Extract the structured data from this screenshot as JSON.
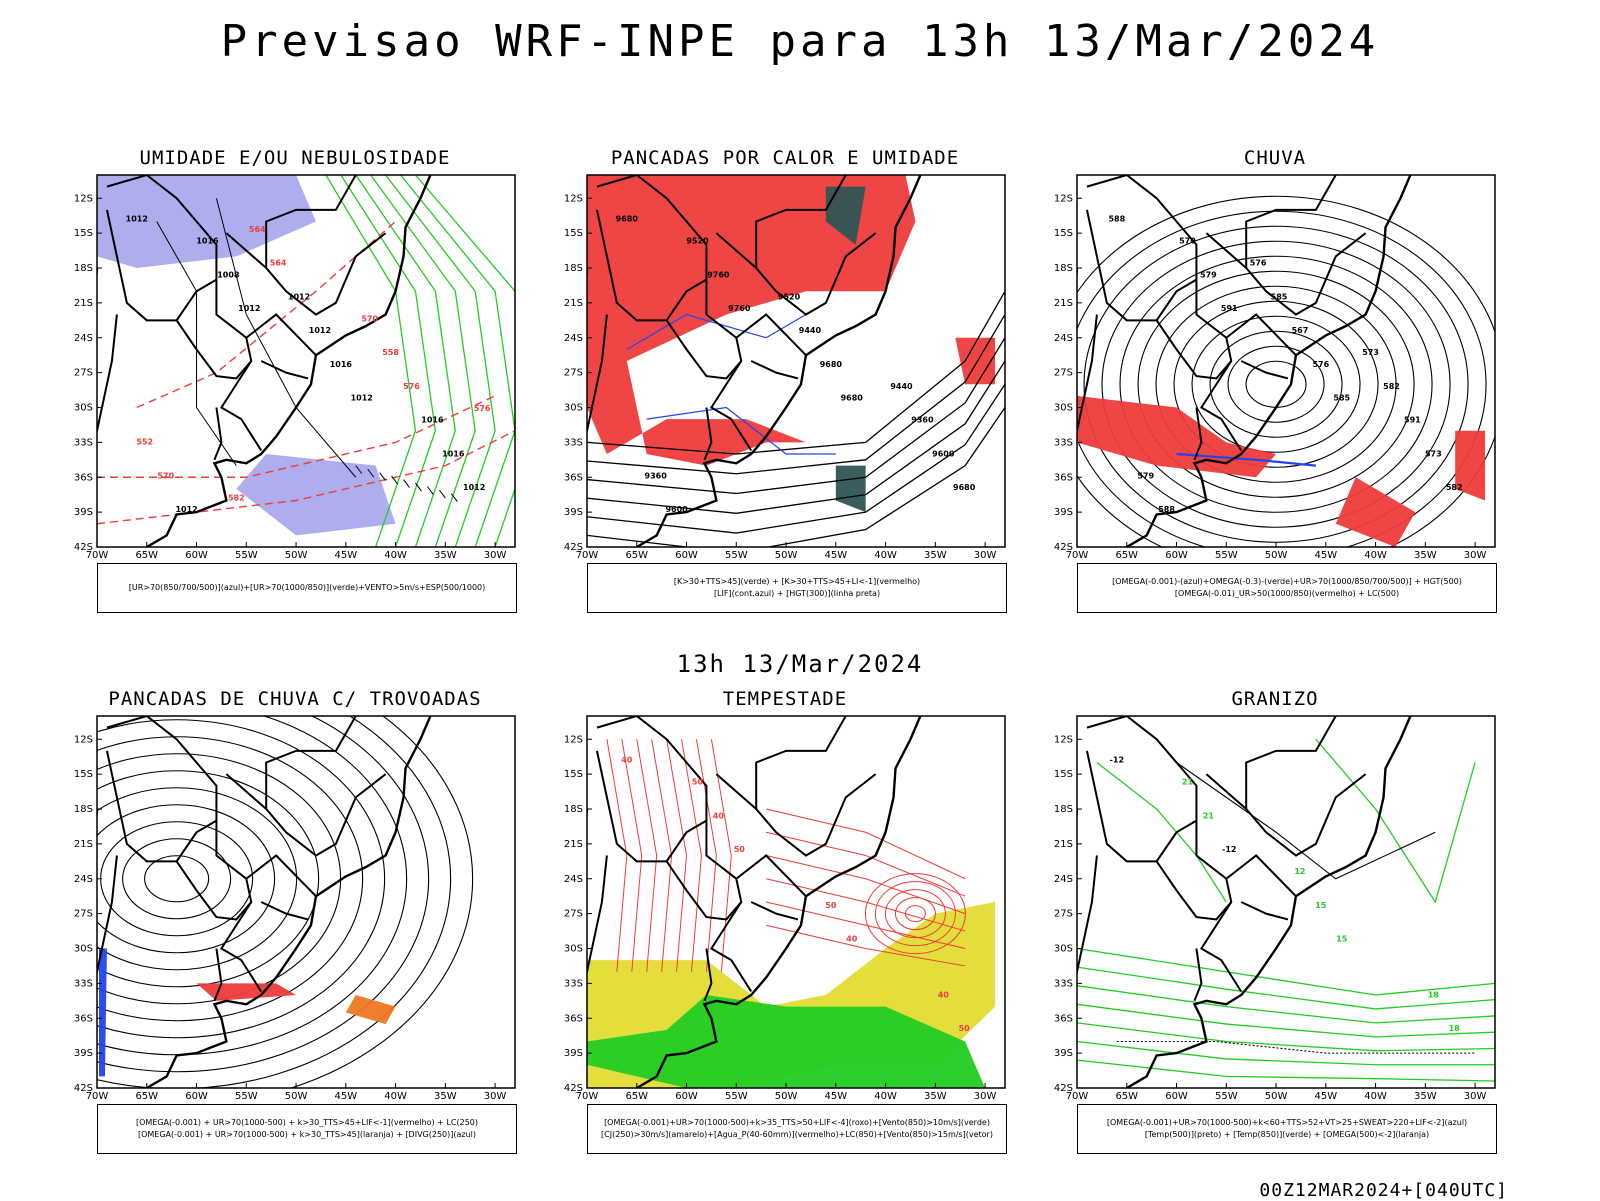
{
  "title": "Previsao WRF-INPE  para 13h 13/Mar/2024",
  "mid_stamp": "13h 13/Mar/2024",
  "footer": "00Z12MAR2024+[040UTC]",
  "colors": {
    "red": "#ee3b3b",
    "green": "#22cc22",
    "blue": "#2244ee",
    "lavender": "#aaaaee",
    "darkteal": "#2f5555",
    "yellow": "#e3dc33",
    "orange": "#ee7722",
    "black": "#000000"
  },
  "chart_data": [
    {
      "type": "map",
      "title": "UMIDADE E/OU NEBULOSIDADE",
      "legend": [
        "[UR>70(850/700/500)](azul)+[UR>70(1000/850)](verde)+VENTO>5m/s+ESP(500/1000)"
      ],
      "xlim": [
        -70,
        -28
      ],
      "ylim": [
        -42,
        -10
      ],
      "x_ticks": [
        "70W",
        "65W",
        "60W",
        "55W",
        "50W",
        "45W",
        "40W",
        "35W",
        "30W"
      ],
      "y_ticks": [
        "12S",
        "15S",
        "18S",
        "21S",
        "24S",
        "27S",
        "30S",
        "33S",
        "36S",
        "39S",
        "42S"
      ],
      "contour_labels": [
        "1012",
        "1012",
        "1012",
        "1012",
        "1008",
        "1016",
        "1016",
        "1016",
        "1012",
        "1016",
        "1012",
        "1012",
        "576",
        "570",
        "564",
        "558",
        "552",
        "564",
        "570",
        "576",
        "582"
      ]
    },
    {
      "type": "map",
      "title": "PANCADAS POR CALOR E UMIDADE",
      "legend": [
        "[K>30+TTS>45](verde) + [K>30+TTS>45+LI<-1](vermelho)",
        "[LIF](cont.azul) + [HGT(300)](linha preta)"
      ],
      "xlim": [
        -70,
        -28
      ],
      "ylim": [
        -42,
        -10
      ],
      "x_ticks": [
        "70W",
        "65W",
        "60W",
        "55W",
        "50W",
        "45W",
        "40W",
        "35W",
        "30W"
      ],
      "y_ticks": [
        "12S",
        "15S",
        "18S",
        "21S",
        "24S",
        "27S",
        "30S",
        "33S",
        "36S",
        "39S",
        "42S"
      ],
      "contour_labels": [
        "9680",
        "9760",
        "9680",
        "9680",
        "9760",
        "9680",
        "9600",
        "9520",
        "9440",
        "9360",
        "9600",
        "9520",
        "9440",
        "9360"
      ]
    },
    {
      "type": "map",
      "title": "CHUVA",
      "legend": [
        "[OMEGA(-0.001)-(azul)+OMEGA(-0.3)-(verde)+UR>70(1000/850/700/500)] + HGT(500)",
        "[OMEGA(-0.01)_UR>50(1000/850)(vermelho) + LC(500)"
      ],
      "xlim": [
        -70,
        -28
      ],
      "ylim": [
        -42,
        -10
      ],
      "x_ticks": [
        "70W",
        "65W",
        "60W",
        "55W",
        "50W",
        "45W",
        "40W",
        "35W",
        "30W"
      ],
      "y_ticks": [
        "12S",
        "15S",
        "18S",
        "21S",
        "24S",
        "27S",
        "30S",
        "33S",
        "36S",
        "39S",
        "42S"
      ],
      "contour_labels": [
        "588",
        "591",
        "585",
        "582",
        "579",
        "576",
        "573",
        "570",
        "567",
        "591",
        "588",
        "585",
        "582",
        "579",
        "576",
        "573"
      ]
    },
    {
      "type": "map",
      "title": "PANCADAS DE CHUVA C/ TROVOADAS",
      "legend": [
        "[OMEGA(-0.001) + UR>70(1000-500) + k>30_TTS>45+LIF<-1](vermelho) + LC(250)",
        "[OMEGA(-0.001) + UR>70(1000-500) + k>30_TTS>45](laranja) + [DIVG(250)](azul)"
      ],
      "xlim": [
        -70,
        -28
      ],
      "ylim": [
        -42,
        -10
      ],
      "x_ticks": [
        "70W",
        "65W",
        "60W",
        "55W",
        "50W",
        "45W",
        "40W",
        "35W",
        "30W"
      ],
      "y_ticks": [
        "12S",
        "15S",
        "18S",
        "21S",
        "24S",
        "27S",
        "30S",
        "33S",
        "36S",
        "39S",
        "42S"
      ],
      "contour_labels": []
    },
    {
      "type": "map",
      "title": "TEMPESTADE",
      "legend": [
        "[OMEGA(-0.001)+UR>70(1000-500)+k>35_TTS>50+LIF<-4](roxo)+[Vento(850)>10m/s](verde)",
        "[CJ(250)>30m/s](amarelo)+[Agua_P(40-60mm)](vermelho)+LC(850)+[Vento(850)>15m/s](vetor)"
      ],
      "xlim": [
        -70,
        -28
      ],
      "ylim": [
        -42,
        -10
      ],
      "x_ticks": [
        "70W",
        "65W",
        "60W",
        "55W",
        "50W",
        "45W",
        "40W",
        "35W",
        "30W"
      ],
      "y_ticks": [
        "12S",
        "15S",
        "18S",
        "21S",
        "24S",
        "27S",
        "30S",
        "33S",
        "36S",
        "39S",
        "42S"
      ],
      "contour_labels": [
        "40",
        "50",
        "40",
        "50",
        "40",
        "50",
        "40",
        "50"
      ]
    },
    {
      "type": "map",
      "title": "GRANIZO",
      "legend": [
        "[OMEGA(-0.001)+UR>70(1000-500)+k<60+TTS>52+VT>25+SWEAT>220+LIF<-2](azul)",
        "[Temp(500)](preto) + [Temp(850)](verde) + [OMEGA(500)<-2](laranja)"
      ],
      "xlim": [
        -70,
        -28
      ],
      "ylim": [
        -42,
        -10
      ],
      "x_ticks": [
        "70W",
        "65W",
        "60W",
        "55W",
        "50W",
        "45W",
        "40W",
        "35W",
        "30W"
      ],
      "y_ticks": [
        "12S",
        "15S",
        "18S",
        "21S",
        "24S",
        "27S",
        "30S",
        "33S",
        "36S",
        "39S",
        "42S"
      ],
      "contour_labels": [
        "-12",
        "-12",
        "15",
        "18",
        "21",
        "15",
        "18",
        "21",
        "12"
      ]
    }
  ]
}
